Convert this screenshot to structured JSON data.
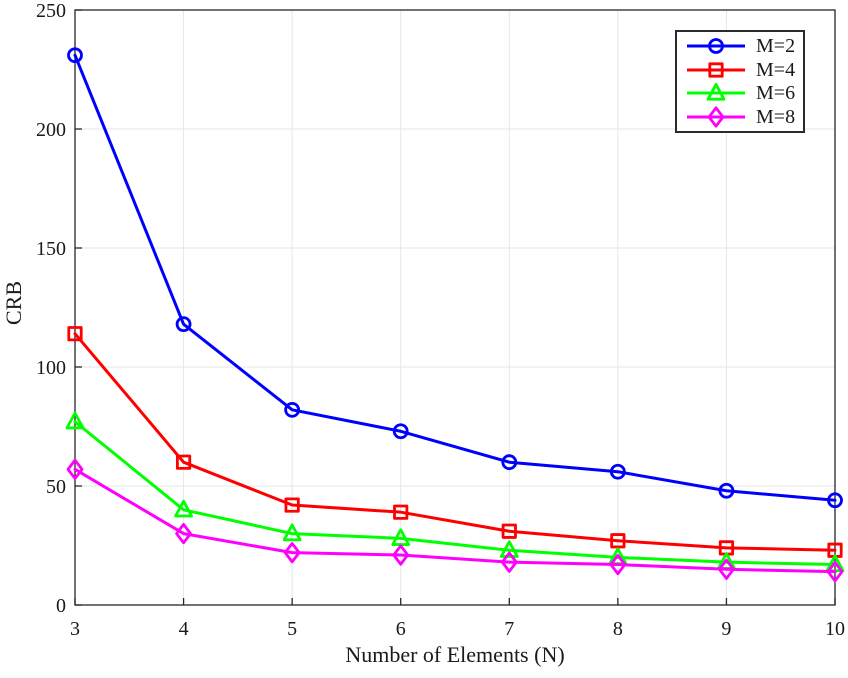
{
  "figure": {
    "background": "#ffffff",
    "axis_color": "#262626",
    "grid_color": "#e6e6e6",
    "text_color": "#1a1a1a"
  },
  "chart_data": {
    "type": "line",
    "title": "",
    "xlabel": "Number of Elements (N)",
    "ylabel": "CRB",
    "x": [
      3,
      4,
      5,
      6,
      7,
      8,
      9,
      10
    ],
    "xlim": [
      3,
      10
    ],
    "ylim": [
      0,
      250
    ],
    "x_ticks": [
      3,
      4,
      5,
      6,
      7,
      8,
      9,
      10
    ],
    "y_ticks": [
      0,
      50,
      100,
      150,
      200,
      250
    ],
    "grid": true,
    "legend_position": "northeast",
    "series": [
      {
        "name": "M=2",
        "color": "#0000ff",
        "marker": "circle",
        "values": [
          231,
          118,
          82,
          73,
          60,
          56,
          48,
          44
        ]
      },
      {
        "name": "M=4",
        "color": "#ff0000",
        "marker": "square",
        "values": [
          114,
          60,
          42,
          39,
          31,
          27,
          24,
          23
        ]
      },
      {
        "name": "M=6",
        "color": "#00ff00",
        "marker": "triangle",
        "values": [
          77,
          40,
          30,
          28,
          23,
          20,
          18,
          17
        ]
      },
      {
        "name": "M=8",
        "color": "#ff00ff",
        "marker": "diamond",
        "values": [
          57,
          30,
          22,
          21,
          18,
          17,
          15,
          14
        ]
      }
    ]
  }
}
